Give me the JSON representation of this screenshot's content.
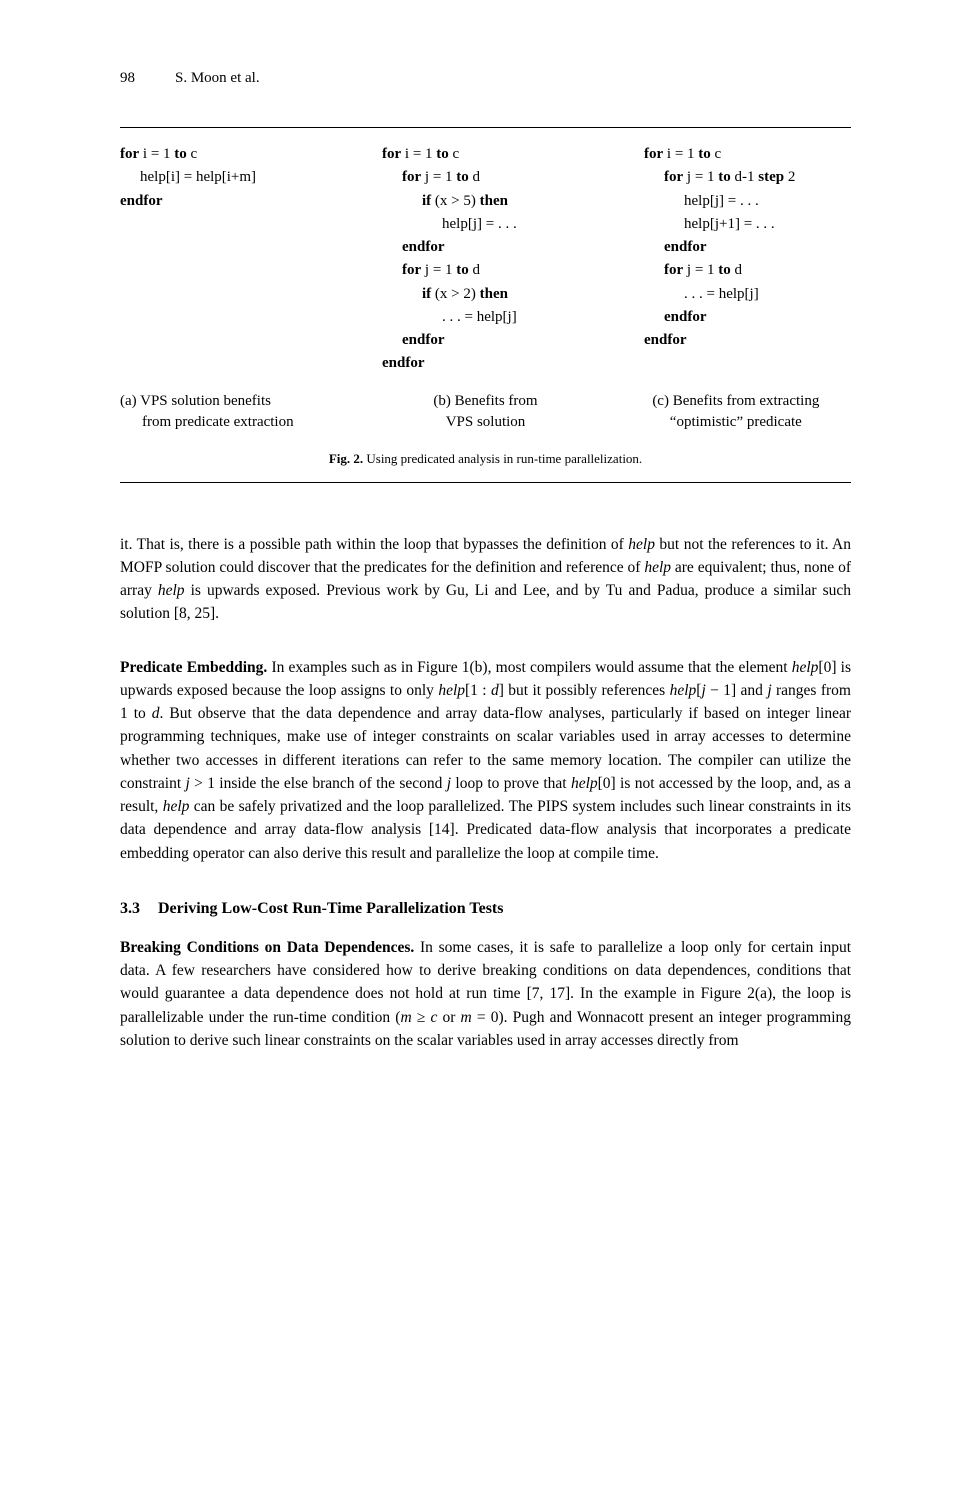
{
  "header": {
    "page_number": "98",
    "authors": "S. Moon et al."
  },
  "figure2": {
    "col_a": {
      "lines": [
        {
          "cls": "",
          "html": "<span class='kw'>for</span> i = 1 <span class='kw'>to</span> c"
        },
        {
          "cls": "indent1",
          "html": "help[i] = help[i+m]"
        },
        {
          "cls": "",
          "html": "<span class='kw'>endfor</span>"
        }
      ],
      "caption_a": "(a) VPS solution benefits",
      "caption_b": "from predicate extraction"
    },
    "col_b": {
      "lines": [
        {
          "cls": "",
          "html": "<span class='kw'>for</span> i = 1 <span class='kw'>to</span> c"
        },
        {
          "cls": "indent1",
          "html": "<span class='kw'>for</span> j = 1 <span class='kw'>to</span> d"
        },
        {
          "cls": "indent2",
          "html": "<span class='kw'>if</span> (x &gt; 5) <span class='kw'>then</span>"
        },
        {
          "cls": "indent3",
          "html": "help[j] = . . ."
        },
        {
          "cls": "indent1",
          "html": "<span class='kw'>endfor</span>"
        },
        {
          "cls": "indent1",
          "html": "<span class='kw'>for</span> j = 1 <span class='kw'>to</span> d"
        },
        {
          "cls": "indent2",
          "html": "<span class='kw'>if</span> (x &gt; 2) <span class='kw'>then</span>"
        },
        {
          "cls": "indent3",
          "html": ". . . = help[j]"
        },
        {
          "cls": "indent1",
          "html": "<span class='kw'>endfor</span>"
        },
        {
          "cls": "",
          "html": "<span class='kw'>endfor</span>"
        }
      ],
      "caption_a": "(b) Benefits from",
      "caption_b": "VPS solution"
    },
    "col_c": {
      "lines": [
        {
          "cls": "",
          "html": "<span class='kw'>for</span> i = 1 <span class='kw'>to</span> c"
        },
        {
          "cls": "indent1",
          "html": "<span class='kw'>for</span> j = 1 <span class='kw'>to</span> d-1 <span class='kw'>step</span> 2"
        },
        {
          "cls": "indent2",
          "html": "help[j] = . . ."
        },
        {
          "cls": "indent2",
          "html": "help[j+1] = . . ."
        },
        {
          "cls": "indent1",
          "html": "<span class='kw'>endfor</span>"
        },
        {
          "cls": "indent1",
          "html": "<span class='kw'>for</span> j = 1 <span class='kw'>to</span> d"
        },
        {
          "cls": "indent2",
          "html": ". . . = help[j]"
        },
        {
          "cls": "indent1",
          "html": "<span class='kw'>endfor</span>"
        },
        {
          "cls": "",
          "html": "<span class='kw'>endfor</span>"
        }
      ],
      "caption_a": "(c) Benefits from extracting",
      "caption_b": "“optimistic” predicate"
    },
    "main_caption_bold": "Fig. 2.",
    "main_caption": " Using predicated analysis in run-time parallelization."
  },
  "para1": "it. That is, there is a possible path within the loop that bypasses the definition of <span class='italic'>help</span> but not the references to it. An MOFP solution could discover that the predicates for the definition and reference of <span class='italic'>help</span> are equivalent; thus, none of array <span class='italic'>help</span> is upwards exposed. Previous work by Gu, Li and Lee, and by Tu and Padua, produce a similar such solution [8, 25].",
  "para2_bold": "Predicate Embedding.",
  "para2": " In examples such as in Figure 1(b), most compilers would assume that the element <span class='italic'>help</span>[0] is upwards exposed because the loop assigns to only <span class='italic'>help</span>[1 : <span class='italic'>d</span>] but it possibly references <span class='italic'>help</span>[<span class='italic'>j</span> − 1] and <span class='italic'>j</span> ranges from 1 to <span class='italic'>d</span>. But observe that the data dependence and array data-flow analyses, particularly if based on integer linear programming techniques, make use of integer constraints on scalar variables used in array accesses to determine whether two accesses in different iterations can refer to the same memory location. The compiler can utilize the constraint <span class='italic'>j</span> &gt; 1 inside the else branch of the second <span class='italic'>j</span> loop to prove that <span class='italic'>help</span>[0] is not accessed by the loop, and, as a result, <span class='italic'>help</span> can be safely privatized and the loop parallelized. The PIPS system includes such linear constraints in its data dependence and array data-flow analysis [14]. Predicated data-flow analysis that incorporates a predicate embedding operator can also derive this result and parallelize the loop at compile time.",
  "section": {
    "number": "3.3",
    "title": "Deriving Low-Cost Run-Time Parallelization Tests"
  },
  "para3_bold": "Breaking Conditions on Data Dependences.",
  "para3": " In some cases, it is safe to parallelize a loop only for certain input data. A few researchers have considered how to derive breaking conditions on data dependences, conditions that would guarantee a data dependence does not hold at run time [7, 17]. In the example in Figure 2(a), the loop is parallelizable under the run-time condition (<span class='italic'>m</span> ≥ <span class='italic'>c</span> or <span class='italic'>m</span> = 0). Pugh and Wonnacott present an integer programming solution to derive such linear constraints on the scalar variables used in array accesses directly from"
}
